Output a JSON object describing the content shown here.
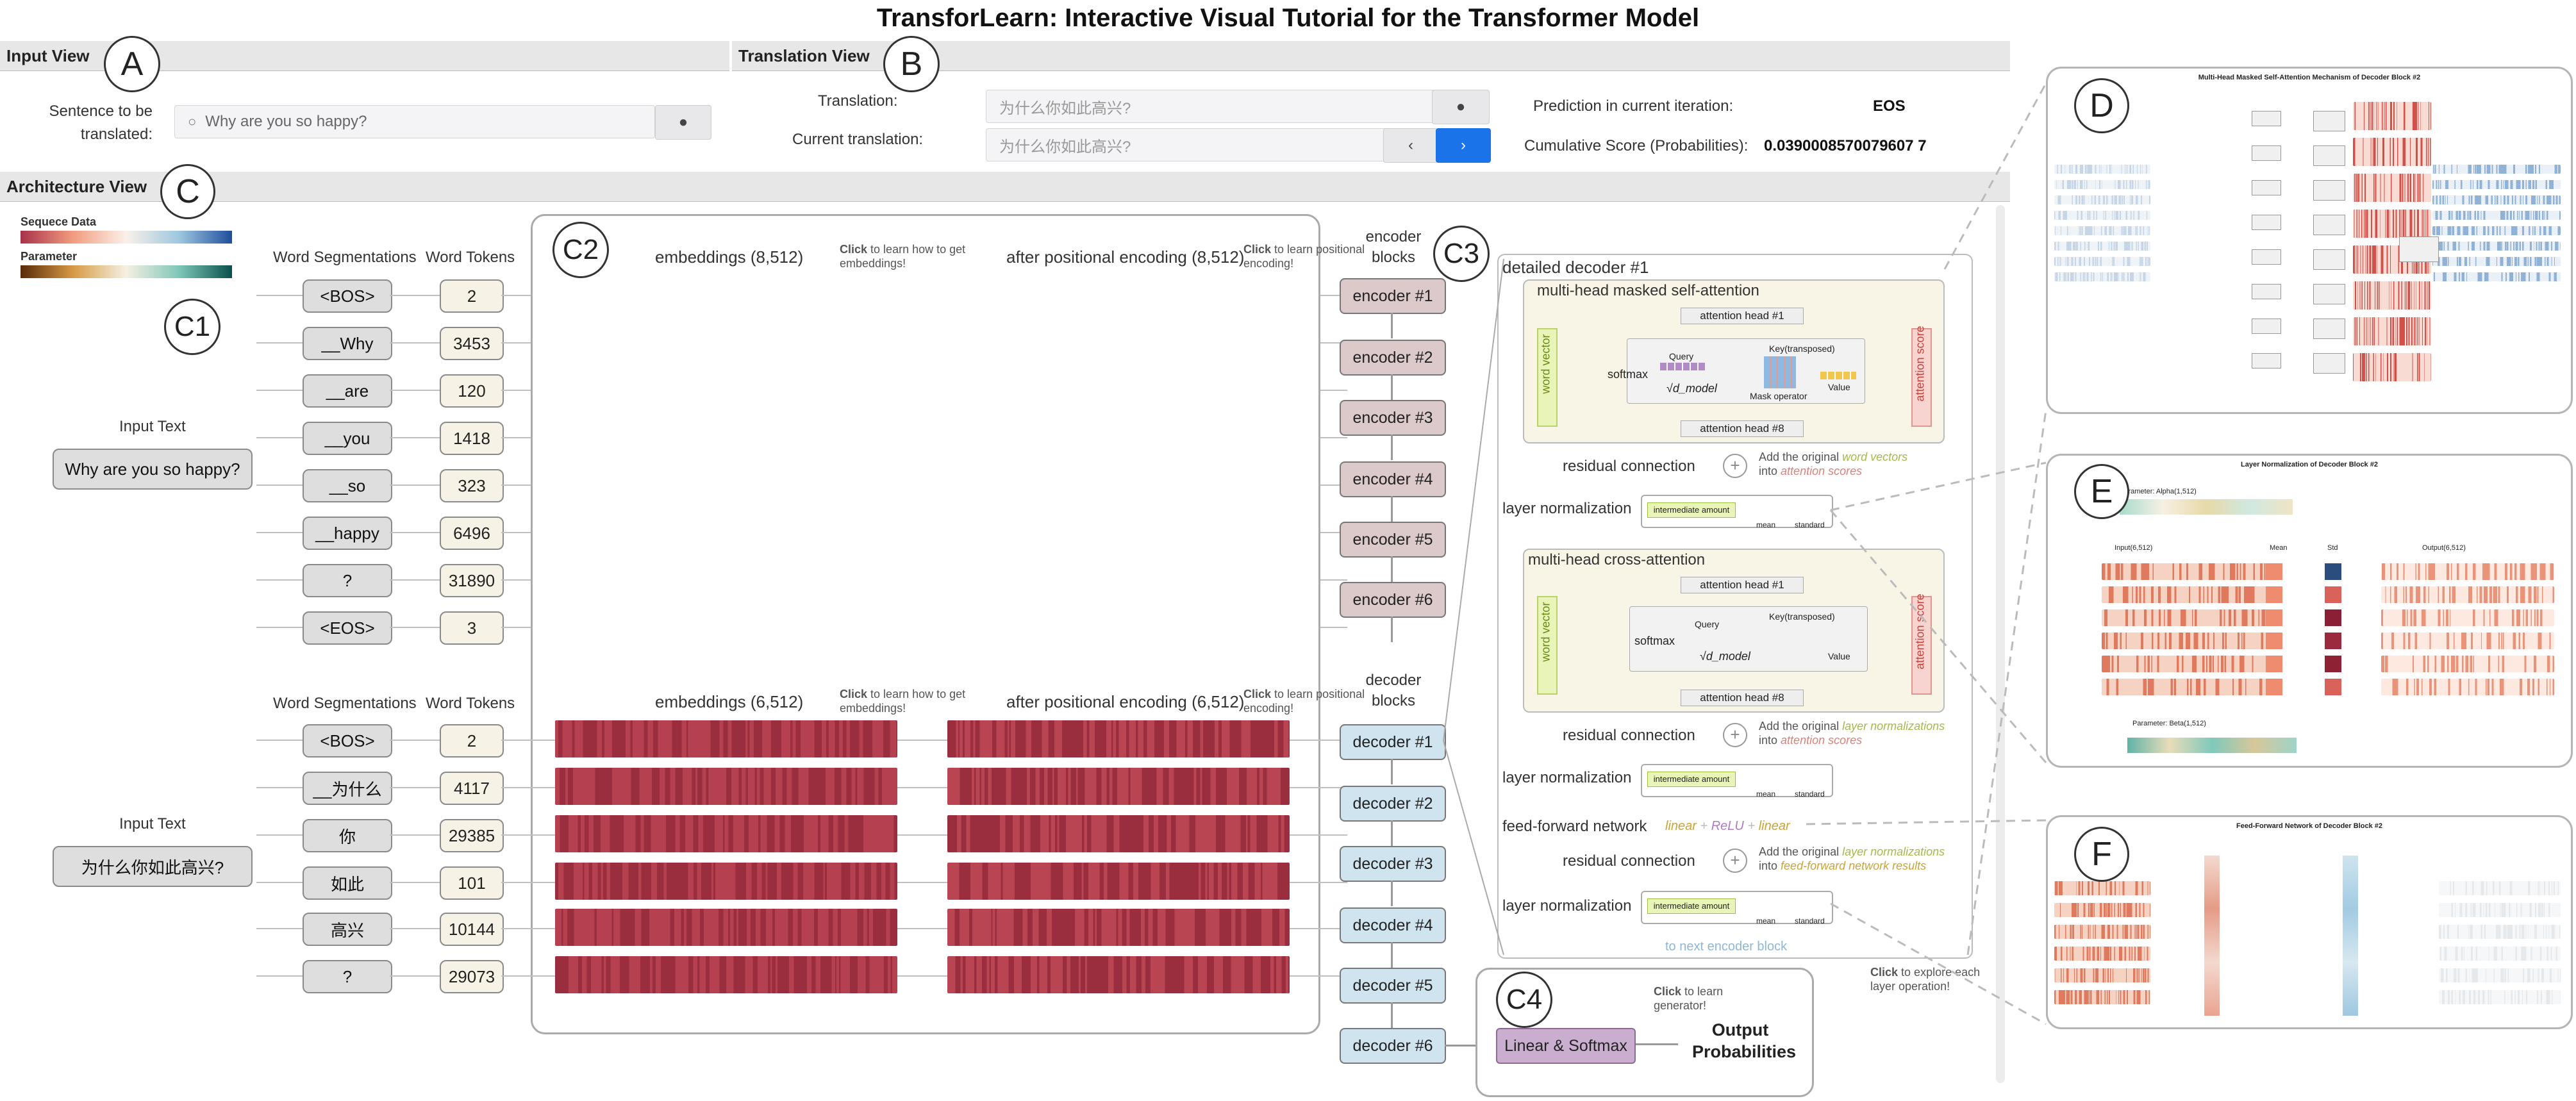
{
  "title": "TransforLearn: Interactive Visual Tutorial for the Transformer Model",
  "views": {
    "input": "Input View",
    "translation": "Translation View",
    "architecture": "Architecture View"
  },
  "markers": {
    "a": "A",
    "b": "B",
    "c": "C",
    "c1": "C1",
    "c2": "C2",
    "c3": "C3",
    "c4": "C4",
    "d": "D",
    "e": "E",
    "f": "F"
  },
  "input_view": {
    "label": "Sentence to be translated:",
    "value": "Why are you so happy?"
  },
  "translation_view": {
    "translation_label": "Translation:",
    "translation_value": "为什么你如此高兴?",
    "current_label": "Current translation:",
    "current_value": "为什么你如此高兴?",
    "prediction_label": "Prediction in current iteration:",
    "prediction_value": "EOS",
    "score_label": "Cumulative Score (Probabilities):",
    "score_value": "0.0390008570079607 7"
  },
  "legend": {
    "sequence": "Sequece Data",
    "parameter": "Parameter"
  },
  "encoder_side": {
    "input_text_label": "Input Text",
    "input_text": "Why are you so happy?",
    "seg_header": "Word Segmentations",
    "tok_header": "Word Tokens",
    "segments": [
      "<BOS>",
      "__Why",
      "__are",
      "__you",
      "__so",
      "__happy",
      "?",
      "<EOS>"
    ],
    "tokens": [
      "2",
      "3453",
      "120",
      "1418",
      "323",
      "6496",
      "31890",
      "3"
    ],
    "emb_title": "embeddings (8,512)",
    "pos_title": "after positional encoding (8,512)",
    "click": "Click",
    "emb_hint": "to learn how to get embeddings!",
    "pos_hint": "to learn positional encoding!",
    "blocks_label": "encoder blocks",
    "blocks": [
      "encoder #1",
      "encoder #2",
      "encoder #3",
      "encoder #4",
      "encoder #5",
      "encoder #6"
    ]
  },
  "decoder_side": {
    "input_text_label": "Input Text",
    "input_text": "为什么你如此高兴?",
    "seg_header": "Word Segmentations",
    "tok_header": "Word Tokens",
    "segments": [
      "<BOS>",
      "__为什么",
      "你",
      "如此",
      "高兴",
      "?"
    ],
    "tokens": [
      "2",
      "4117",
      "29385",
      "101",
      "10144",
      "29073"
    ],
    "emb_title": "embeddings (6,512)",
    "pos_title": "after positional encoding (6,512)",
    "emb_hint": "to learn how to get embeddings!",
    "pos_hint": "to learn positional encoding!",
    "blocks_label": "decoder blocks",
    "blocks": [
      "decoder #1",
      "decoder #2",
      "decoder #3",
      "decoder #4",
      "decoder #5",
      "decoder #6"
    ]
  },
  "detail": {
    "title": "detailed decoder #1",
    "masked_attn": "multi-head masked self-attention",
    "cross_attn": "multi-head cross-attention",
    "head1": "attention head #1",
    "head8": "attention head #8",
    "word_vector": "word vector",
    "attention_score": "attention score",
    "query": "Query",
    "key": "Key(transposed)",
    "value": "Value",
    "softmax": "softmax",
    "dmodel": "√d_model",
    "mask": "Mask operator",
    "residual": "residual connection",
    "layernorm": "layer normalization",
    "ffn": "feed-forward network",
    "res1a": "Add the original",
    "res1b": "word vectors",
    "res1c": "into",
    "res1d": "attention scores",
    "res2b": "layer normalizations",
    "res2d": "attention scores",
    "res3b": "layer normalizations",
    "res3d": "feed-forward network results",
    "ln_box": "intermediate amount",
    "mean": "mean",
    "std": "standard",
    "ffn_linear": "linear",
    "ffn_relu": "ReLU",
    "plus": "+",
    "next": "to next encoder block",
    "explore_click": "Click",
    "explore": "to explore each layer operation!"
  },
  "generator": {
    "label": "Linear & Softmax",
    "output": "Output Probabilities",
    "click": "Click",
    "hint": "to learn generator!"
  },
  "thumbs": {
    "d_title": "Multi-Head Masked Self-Attention Mechanism of Decoder Block #2",
    "e_title": "Layer Normalization of Decoder Block #2",
    "f_title": "Feed-Forward Network of Decoder Block #2",
    "e_alpha": "Parameter: Alpha(1,512)",
    "e_beta": "Parameter: Beta(1,512)",
    "e_input": "Input(6,512)",
    "e_mean": "Mean",
    "e_std": "Std",
    "e_output": "Output(6,512)"
  },
  "colors": {
    "seq_light": "#fbe4d8",
    "seq_mid": "#f0a588",
    "dec_red": "#b5404f",
    "enc_block": "#dcc9c9",
    "dec_block": "#cfe4ee",
    "gen": "#c9aecf",
    "accent_blue": "#1a73e8"
  }
}
